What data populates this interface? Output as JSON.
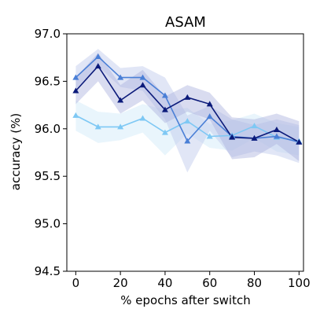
{
  "chart_data": {
    "type": "line",
    "title": "ASAM",
    "xlabel": "% epochs after switch",
    "ylabel": "accuracy (%)",
    "xlim": [
      -4,
      102
    ],
    "ylim": [
      94.5,
      97.0
    ],
    "xticks": [
      0,
      20,
      40,
      60,
      80,
      100
    ],
    "yticks": [
      94.5,
      95.0,
      95.5,
      96.0,
      96.5,
      97.0
    ],
    "ytick_labels": [
      "94.5",
      "95.0",
      "95.5",
      "96.0",
      "96.5",
      "97.0"
    ],
    "grid": false,
    "x": [
      0,
      10,
      20,
      30,
      40,
      50,
      60,
      70,
      80,
      90,
      100
    ],
    "series": [
      {
        "color": "#7ec8f4",
        "band_color": "#cfe9f9",
        "values": [
          96.14,
          96.02,
          96.02,
          96.11,
          95.96,
          96.08,
          95.92,
          95.93,
          96.03,
          95.91,
          95.87
        ],
        "lower": [
          95.98,
          95.85,
          95.88,
          95.96,
          95.72,
          95.95,
          95.8,
          95.77,
          95.9,
          95.76,
          95.72
        ],
        "upper": [
          96.3,
          96.18,
          96.16,
          96.26,
          96.2,
          96.22,
          96.05,
          96.09,
          96.16,
          96.06,
          96.02
        ]
      },
      {
        "color": "#4a7fd6",
        "band_color": "#bcc8ec",
        "values": [
          96.54,
          96.76,
          96.54,
          96.54,
          96.35,
          95.87,
          96.13,
          95.92,
          95.9,
          95.92,
          95.86
        ],
        "lower": [
          96.42,
          96.66,
          96.44,
          96.4,
          96.1,
          95.54,
          95.98,
          95.7,
          95.76,
          95.72,
          95.64
        ],
        "upper": [
          96.66,
          96.84,
          96.64,
          96.66,
          96.54,
          96.14,
          96.24,
          96.1,
          96.04,
          96.1,
          96.04
        ]
      },
      {
        "color": "#0b1a7a",
        "band_color": "#aab1de",
        "values": [
          96.4,
          96.66,
          96.3,
          96.46,
          96.2,
          96.33,
          96.26,
          95.91,
          95.9,
          95.99,
          95.86
        ],
        "lower": [
          96.26,
          96.5,
          96.16,
          96.3,
          96.06,
          96.18,
          96.1,
          95.68,
          95.7,
          95.84,
          95.66
        ],
        "upper": [
          96.54,
          96.8,
          96.46,
          96.62,
          96.34,
          96.46,
          96.38,
          96.12,
          96.1,
          96.16,
          96.08
        ]
      }
    ]
  }
}
